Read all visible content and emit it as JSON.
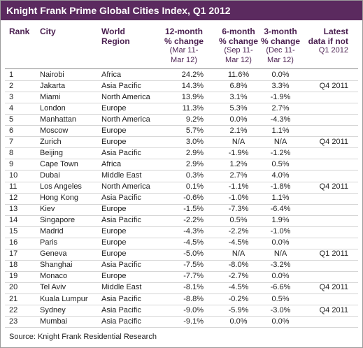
{
  "header": {
    "title": "Knight Frank Prime Global Cities Index, Q1 2012"
  },
  "table": {
    "columns": [
      {
        "key": "rank",
        "lines": [
          "Rank"
        ]
      },
      {
        "key": "city",
        "lines": [
          "City"
        ]
      },
      {
        "key": "region",
        "lines": [
          "World",
          "Region"
        ]
      },
      {
        "key": "m12",
        "lines": [
          "12-month",
          "% change",
          "(Mar 11-",
          "Mar 12)"
        ]
      },
      {
        "key": "m6",
        "lines": [
          "6-month",
          "% change",
          "(Sep 11-",
          "Mar 12)"
        ]
      },
      {
        "key": "m3",
        "lines": [
          "3-month",
          "% change",
          "(Dec 11-",
          "Mar 12)"
        ]
      },
      {
        "key": "latest",
        "lines": [
          "Latest",
          "data if not",
          "Q1 2012"
        ]
      }
    ],
    "rows": [
      {
        "rank": 1,
        "city": "Nairobi",
        "region": "Africa",
        "m12": "24.2%",
        "m6": "11.6%",
        "m3": "0.0%"
      },
      {
        "rank": 2,
        "city": "Jakarta",
        "region": "Asia Pacific",
        "m12": "14.3%",
        "m6": "6.8%",
        "m3": "3.3%",
        "latest": "Q4 2011"
      },
      {
        "rank": 3,
        "city": "Miami",
        "region": "North America",
        "m12": "13.9%",
        "m6": "3.1%",
        "m3": "-1.9%"
      },
      {
        "rank": 4,
        "city": "London",
        "region": "Europe",
        "m12": "11.3%",
        "m6": "5.3%",
        "m3": "2.7%"
      },
      {
        "rank": 5,
        "city": "Manhattan",
        "region": "North America",
        "m12": "9.2%",
        "m6": "0.0%",
        "m3": "-4.3%"
      },
      {
        "rank": 6,
        "city": "Moscow",
        "region": "Europe",
        "m12": "5.7%",
        "m6": "2.1%",
        "m3": "1.1%"
      },
      {
        "rank": 7,
        "city": "Zurich",
        "region": "Europe",
        "m12": "3.0%",
        "m6": "N/A",
        "m3": "N/A",
        "latest": "Q4 2011"
      },
      {
        "rank": 8,
        "city": "Beijing",
        "region": "Asia Pacific",
        "m12": "2.9%",
        "m6": "-1.9%",
        "m3": "-1.2%"
      },
      {
        "rank": 9,
        "city": "Cape Town",
        "region": "Africa",
        "m12": "2.9%",
        "m6": "1.2%",
        "m3": "0.5%"
      },
      {
        "rank": 10,
        "city": "Dubai",
        "region": "Middle East",
        "m12": "0.3%",
        "m6": "2.7%",
        "m3": "4.0%"
      },
      {
        "rank": 11,
        "city": "Los Angeles",
        "region": "North America",
        "m12": "0.1%",
        "m6": "-1.1%",
        "m3": "-1.8%",
        "latest": "Q4 2011"
      },
      {
        "rank": 12,
        "city": "Hong Kong",
        "region": "Asia Pacific",
        "m12": "-0.6%",
        "m6": "-1.0%",
        "m3": "1.1%"
      },
      {
        "rank": 13,
        "city": "Kiev",
        "region": "Europe",
        "m12": "-1.5%",
        "m6": "-7.3%",
        "m3": "-6.4%"
      },
      {
        "rank": 14,
        "city": "Singapore",
        "region": "Asia Pacific",
        "m12": "-2.2%",
        "m6": "0.5%",
        "m3": "1.9%"
      },
      {
        "rank": 15,
        "city": "Madrid",
        "region": "Europe",
        "m12": "-4.3%",
        "m6": "-2.2%",
        "m3": "-1.0%"
      },
      {
        "rank": 16,
        "city": "Paris",
        "region": "Europe",
        "m12": "-4.5%",
        "m6": "-4.5%",
        "m3": "0.0%"
      },
      {
        "rank": 17,
        "city": "Geneva",
        "region": "Europe",
        "m12": "-5.0%",
        "m6": "N/A",
        "m3": "N/A",
        "latest": "Q1 2011"
      },
      {
        "rank": 18,
        "city": "Shanghai",
        "region": "Asia Pacific",
        "m12": "-7.5%",
        "m6": "-8.0%",
        "m3": "-3.2%"
      },
      {
        "rank": 19,
        "city": "Monaco",
        "region": "Europe",
        "m12": "-7.7%",
        "m6": "-2.7%",
        "m3": "0.0%"
      },
      {
        "rank": 20,
        "city": "Tel Aviv",
        "region": "Middle East",
        "m12": "-8.1%",
        "m6": "-4.5%",
        "m3": "-6.6%",
        "latest": "Q4 2011"
      },
      {
        "rank": 21,
        "city": "Kuala Lumpur",
        "region": "Asia Pacific",
        "m12": "-8.8%",
        "m6": "-0.2%",
        "m3": "0.5%"
      },
      {
        "rank": 22,
        "city": "Sydney",
        "region": "Asia Pacific",
        "m12": "-9.0%",
        "m6": "-5.9%",
        "m3": "-3.0%",
        "latest": "Q4 2011"
      },
      {
        "rank": 23,
        "city": "Mumbai",
        "region": "Asia Pacific",
        "m12": "-9.1%",
        "m6": "0.0%",
        "m3": "0.0%"
      }
    ]
  },
  "footer": {
    "source": "Source: Knight Frank Residential Research"
  }
}
